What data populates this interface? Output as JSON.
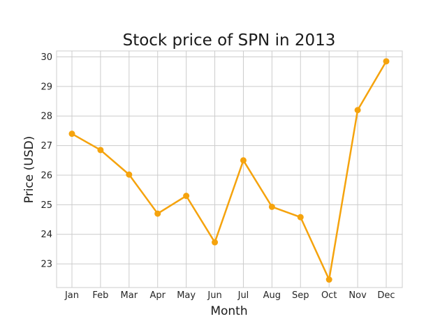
{
  "chart_data": {
    "type": "line",
    "title": "Stock price of SPN in 2013",
    "xlabel": "Month",
    "ylabel": "Price (USD)",
    "categories": [
      "Jan",
      "Feb",
      "Mar",
      "Apr",
      "May",
      "Jun",
      "Jul",
      "Aug",
      "Sep",
      "Oct",
      "Nov",
      "Dec"
    ],
    "values": [
      27.4,
      26.85,
      26.02,
      24.7,
      25.3,
      23.73,
      26.5,
      24.93,
      24.58,
      22.47,
      28.2,
      29.85
    ],
    "ylim": [
      22.2,
      30.2
    ],
    "yticks": [
      "23",
      "24",
      "25",
      "26",
      "27",
      "28",
      "29",
      "30"
    ],
    "grid": true,
    "line_color": "#f5a30d",
    "marker": "circle"
  }
}
